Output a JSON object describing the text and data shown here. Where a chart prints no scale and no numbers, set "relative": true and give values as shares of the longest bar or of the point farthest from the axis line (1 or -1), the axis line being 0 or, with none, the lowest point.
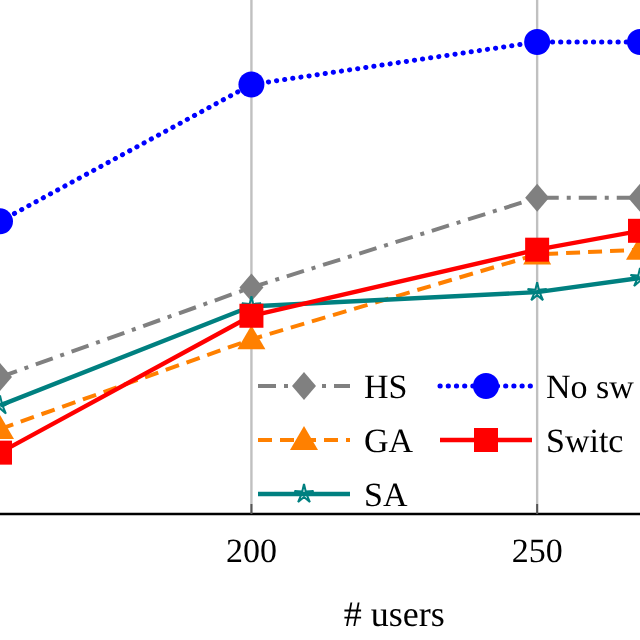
{
  "chart_data": {
    "type": "line",
    "relative": true,
    "xlabel": "# users",
    "xlim": [
      156,
      268
    ],
    "xticks": [
      200,
      250
    ],
    "grid": "x",
    "legend": "bottom right",
    "series": [
      {
        "name": "HS",
        "color": "#808080",
        "marker": "diamond",
        "line_style": "dashdot",
        "x": [
          156,
          200,
          250,
          268
        ],
        "values": [
          0.29,
          0.48,
          0.67,
          0.67
        ]
      },
      {
        "name": "GA",
        "color": "#ff8000",
        "marker": "triangle",
        "line_style": "dashed",
        "x": [
          156,
          200,
          250,
          268
        ],
        "values": [
          0.18,
          0.37,
          0.55,
          0.56
        ]
      },
      {
        "name": "SA",
        "color": "#008080",
        "marker": "star",
        "line_style": "solid",
        "x": [
          156,
          200,
          250,
          268
        ],
        "values": [
          0.23,
          0.44,
          0.47,
          0.5
        ]
      },
      {
        "name": "No sw",
        "color": "#0000ff",
        "marker": "circle",
        "line_style": "dotted",
        "x": [
          156,
          200,
          250,
          268
        ],
        "values": [
          0.62,
          0.91,
          1.0,
          1.0
        ]
      },
      {
        "name": "Switc",
        "color": "#ff0000",
        "marker": "square",
        "line_style": "solid",
        "x": [
          156,
          200,
          250,
          268
        ],
        "values": [
          0.13,
          0.42,
          0.56,
          0.6
        ]
      }
    ]
  }
}
